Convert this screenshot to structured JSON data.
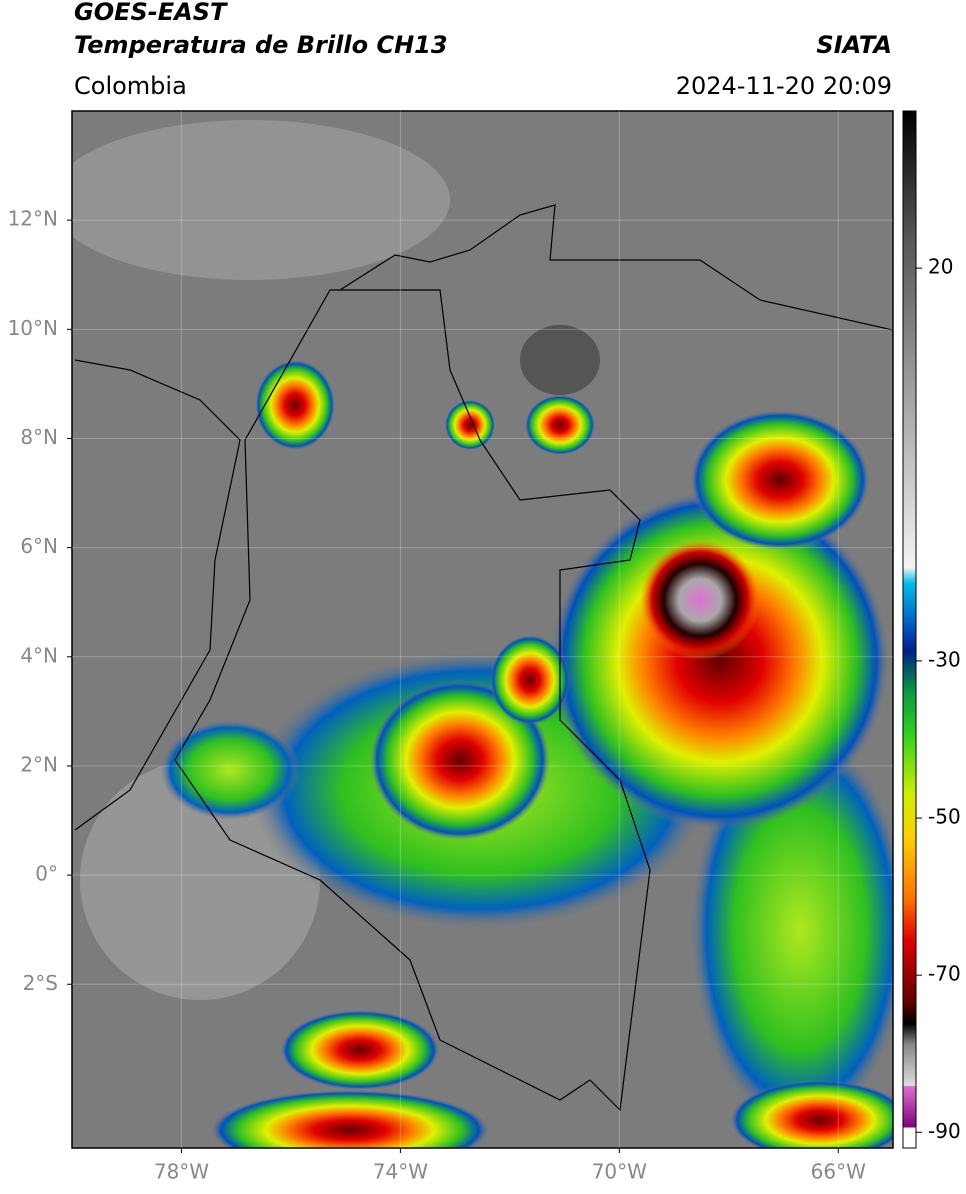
{
  "header": {
    "title": "GOES-EAST",
    "subtitle": "Temperatura de Brillo CH13",
    "source": "SIATA",
    "region": "Colombia",
    "datetime": "2024-11-20 20:09"
  },
  "map": {
    "xlim": [
      -80,
      -65
    ],
    "ylim": [
      -5,
      14
    ],
    "xticks": [
      {
        "value": -78,
        "label": "78°W"
      },
      {
        "value": -74,
        "label": "74°W"
      },
      {
        "value": -70,
        "label": "70°W"
      },
      {
        "value": -66,
        "label": "66°W"
      }
    ],
    "yticks": [
      {
        "value": 12,
        "label": "12°N"
      },
      {
        "value": 10,
        "label": "10°N"
      },
      {
        "value": 8,
        "label": "8°N"
      },
      {
        "value": 6,
        "label": "6°N"
      },
      {
        "value": 4,
        "label": "4°N"
      },
      {
        "value": 2,
        "label": "2°N"
      },
      {
        "value": 0,
        "label": "0°"
      },
      {
        "value": -2,
        "label": "2°S"
      }
    ],
    "grid": true
  },
  "colorbar": {
    "lim": [
      -92,
      40
    ],
    "ticks": [
      20,
      -30,
      -50,
      -70,
      -90
    ]
  }
}
